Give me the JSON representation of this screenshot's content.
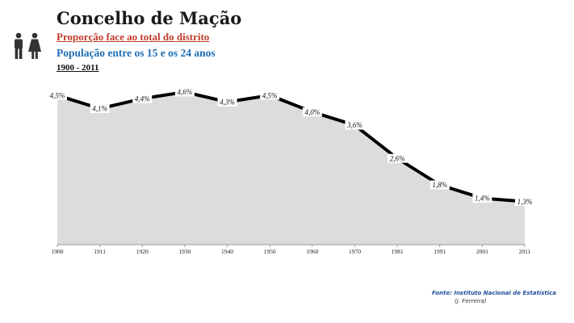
{
  "header": {
    "title": "Concelho de Mação",
    "subtitle1": "Proporção face ao total do distrito",
    "subtitle2": "População entre os 15 e os 24 anos",
    "period": "1900 - 2011",
    "icon": "people-icon"
  },
  "footer": {
    "source": "Fonte: Instituto Nacional de Estatística",
    "author": "(J. Ferreira)"
  },
  "colors": {
    "area_fill": "#dcdcdc",
    "line": "#000000",
    "subtitle1": "#c0392b",
    "subtitle2": "#1f6fb5",
    "source": "#1f4e9a"
  },
  "chart_data": {
    "type": "area",
    "title": "",
    "xlabel": "",
    "ylabel": "",
    "x": [
      "1900",
      "1911",
      "1920",
      "1930",
      "1940",
      "1950",
      "1960",
      "1970",
      "1981",
      "1991",
      "2001",
      "2011"
    ],
    "values": [
      4.5,
      4.1,
      4.4,
      4.6,
      4.3,
      4.5,
      4.0,
      3.6,
      2.6,
      1.8,
      1.4,
      1.3
    ],
    "labels": [
      "4,5%",
      "4,1%",
      "4,4%",
      "4,6%",
      "4,3%",
      "4,5%",
      "4,0%",
      "3,6%",
      "2,6%",
      "1,8%",
      "1,4%",
      "1,3%"
    ],
    "ylim": [
      0,
      5
    ],
    "grid": false,
    "legend": "none"
  }
}
